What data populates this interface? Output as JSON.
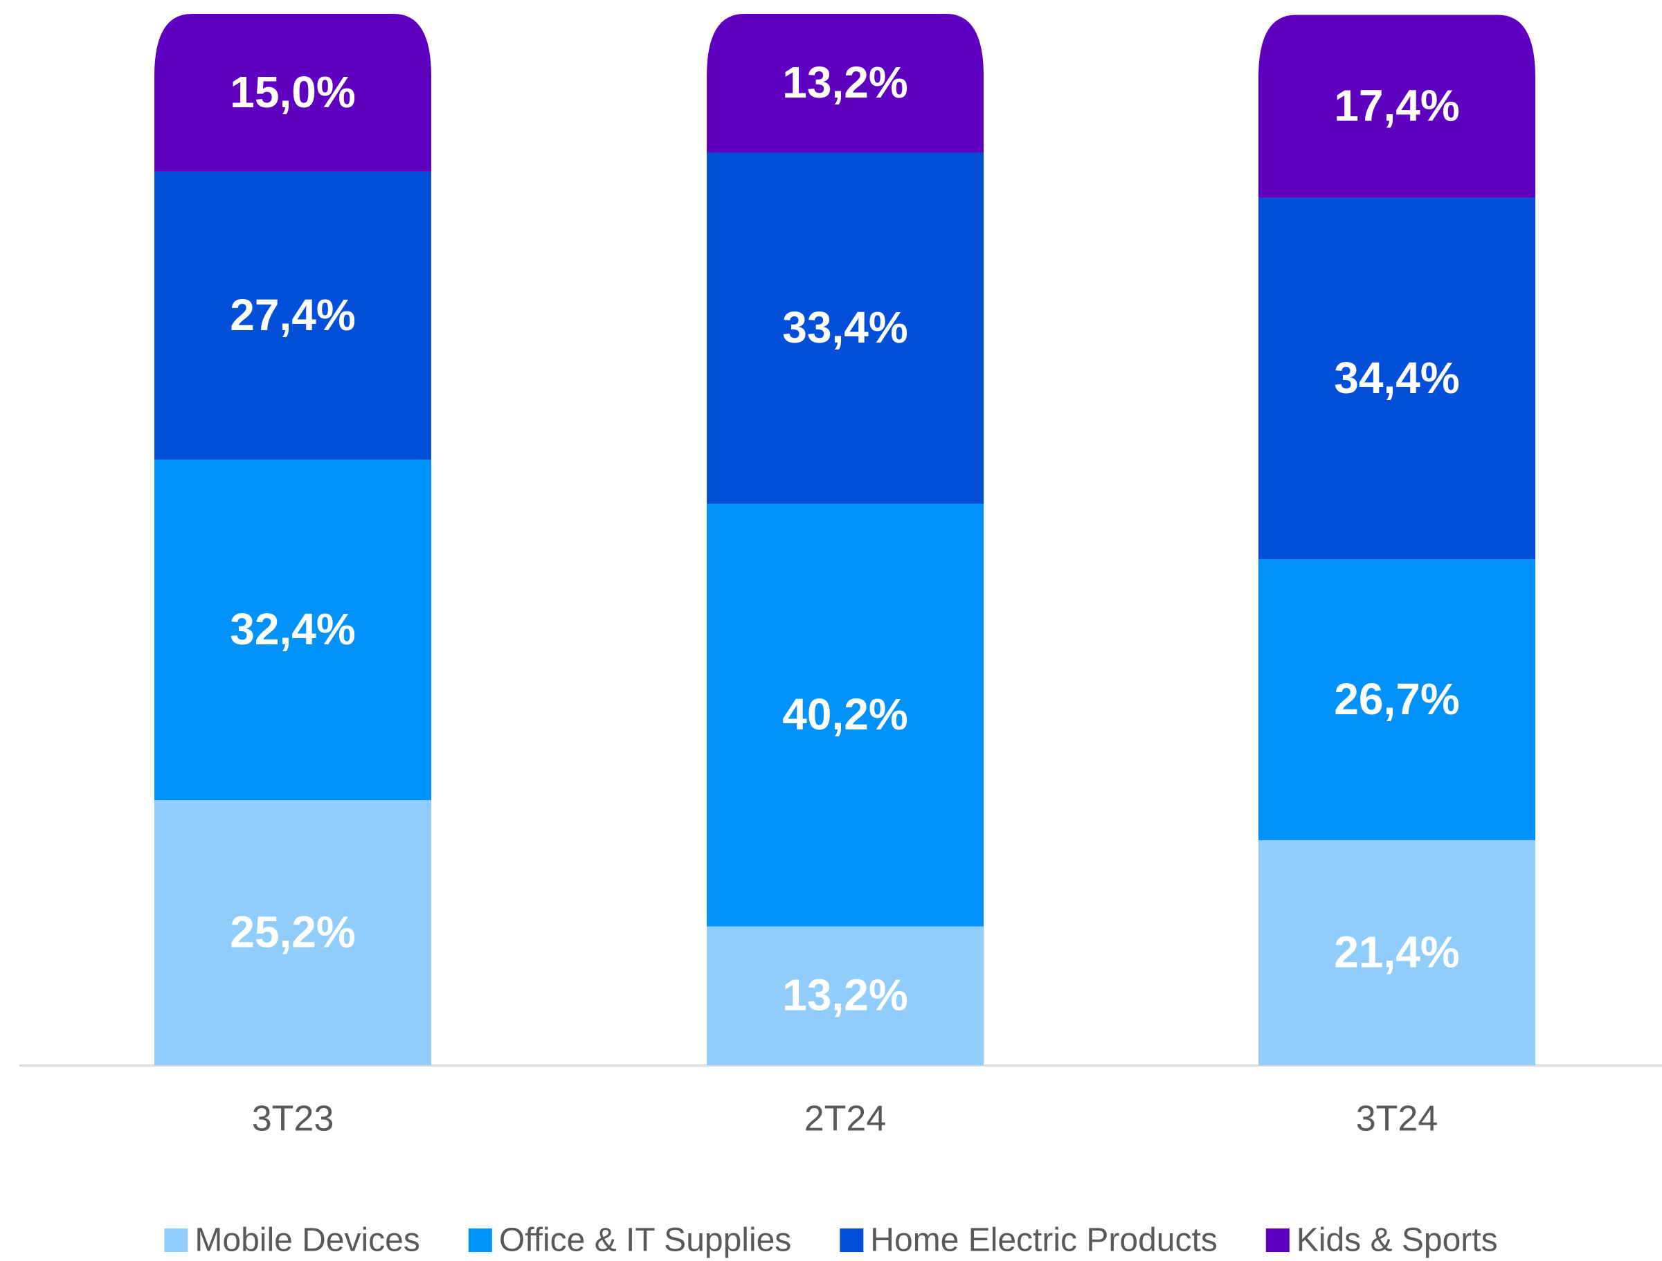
{
  "chart_data": {
    "type": "stacked_bar",
    "categories": [
      "3T23",
      "2T24",
      "3T24"
    ],
    "series": [
      {
        "name": "Mobile Devices",
        "color": "#90cdfb",
        "values": [
          25.2,
          13.2,
          21.4
        ],
        "value_labels": [
          "25,2%",
          "13,2%",
          "21,4%"
        ]
      },
      {
        "name": "Office & IT Supplies",
        "color": "#0091fb",
        "values": [
          32.4,
          40.2,
          26.7
        ],
        "value_labels": [
          "32,4%",
          "40,2%",
          "26,7%"
        ]
      },
      {
        "name": "Home Electric Products",
        "color": "#034fd9",
        "values": [
          27.4,
          33.4,
          34.4
        ],
        "value_labels": [
          "27,4%",
          "33,4%",
          "34,4%"
        ]
      },
      {
        "name": "Kids & Sports",
        "color": "#5e00c0",
        "values": [
          15.0,
          13.2,
          17.4
        ],
        "value_labels": [
          "15,0%",
          "13,2%",
          "17,4%"
        ]
      }
    ],
    "ylim": [
      0,
      100
    ],
    "legend": "bottom"
  }
}
